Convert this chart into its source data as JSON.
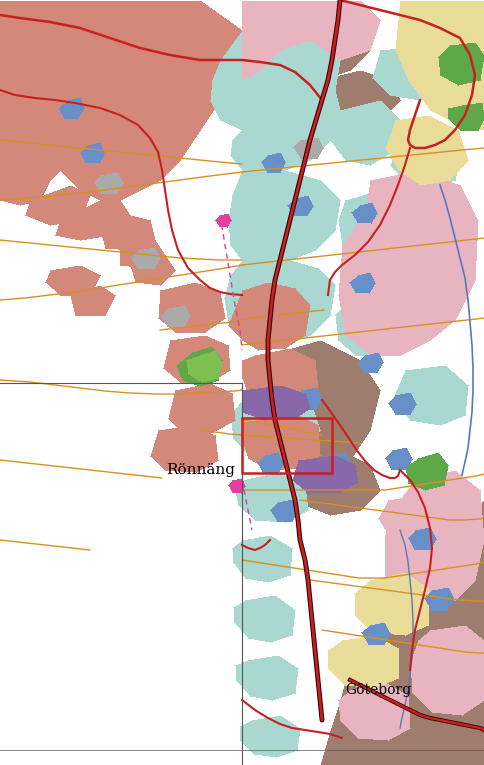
{
  "figsize": [
    4.84,
    7.65
  ],
  "dpi": 100,
  "labels": {
    "ronnang": "Rönnäng",
    "goteborg": "Göteborg"
  },
  "colors": {
    "bg": "#ffffff",
    "salmon": "#d4887a",
    "cyan": "#a8d8d0",
    "brown": "#9e7d6e",
    "light_pink": "#e8b4c0",
    "yellow": "#e8dc98",
    "green1": "#5fa84a",
    "green2": "#7dc050",
    "blue_lake": "#6890c8",
    "blue_river": "#5878c0",
    "purple": "#8868a8",
    "magenta": "#e040a0",
    "red_road": "#c82020",
    "dark_road": "#601010",
    "orange_road": "#d89020",
    "grey_border": "#888888",
    "pink2": "#d8a0b8"
  }
}
